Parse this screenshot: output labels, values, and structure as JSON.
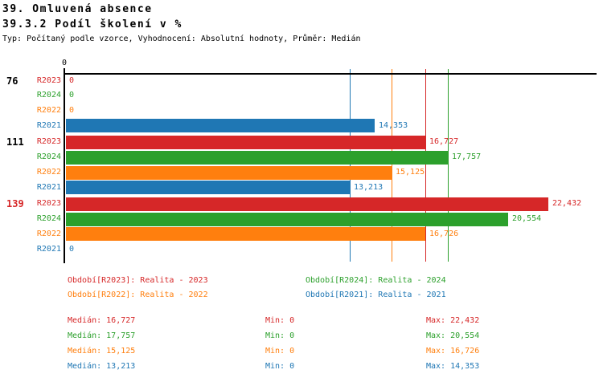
{
  "title": "39. Omluvená absence",
  "subtitle": "39.3.2 Podíl školení v %",
  "meta": "Typ: Počítaný podle vzorce, Vyhodnocení: Absolutní hodnoty, Průměr: Medián",
  "series_colors": {
    "R2023": "#d62728",
    "R2024": "#2ca02c",
    "R2022": "#ff7f0e",
    "R2021": "#1f77b4"
  },
  "axis_color": "#000000",
  "highlight_color": "#d62728",
  "chart_data": {
    "type": "bar",
    "orientation": "horizontal",
    "x_axis": {
      "zero_label": "0",
      "xlim": [
        0,
        24.7
      ],
      "grid": false
    },
    "series_order": [
      "R2023",
      "R2024",
      "R2022",
      "R2021"
    ],
    "groups": [
      {
        "label": "76",
        "highlight": false,
        "bars": [
          {
            "series": "R2023",
            "value": 0,
            "display": "0"
          },
          {
            "series": "R2024",
            "value": 0,
            "display": "0"
          },
          {
            "series": "R2022",
            "value": 0,
            "display": "0"
          },
          {
            "series": "R2021",
            "value": 14.353,
            "display": "14,353"
          }
        ]
      },
      {
        "label": "111",
        "highlight": false,
        "bars": [
          {
            "series": "R2023",
            "value": 16.727,
            "display": "16,727"
          },
          {
            "series": "R2024",
            "value": 17.757,
            "display": "17,757"
          },
          {
            "series": "R2022",
            "value": 15.125,
            "display": "15,125"
          },
          {
            "series": "R2021",
            "value": 13.213,
            "display": "13,213"
          }
        ]
      },
      {
        "label": "139",
        "highlight": true,
        "bars": [
          {
            "series": "R2023",
            "value": 22.432,
            "display": "22,432"
          },
          {
            "series": "R2024",
            "value": 20.554,
            "display": "20,554"
          },
          {
            "series": "R2022",
            "value": 16.726,
            "display": "16,726"
          },
          {
            "series": "R2021",
            "value": 0,
            "display": "0"
          }
        ]
      }
    ],
    "median_lines": [
      {
        "series": "R2023",
        "value": 16.727
      },
      {
        "series": "R2024",
        "value": 17.757
      },
      {
        "series": "R2022",
        "value": 15.125
      },
      {
        "series": "R2021",
        "value": 13.213
      }
    ]
  },
  "legend": {
    "items": [
      {
        "series": "R2023",
        "text": "Období[R2023]: Realita - 2023"
      },
      {
        "series": "R2024",
        "text": "Období[R2024]: Realita - 2024"
      },
      {
        "series": "R2022",
        "text": "Období[R2022]: Realita - 2022"
      },
      {
        "series": "R2021",
        "text": "Období[R2021]: Realita - 2021"
      }
    ]
  },
  "stats": {
    "rows": [
      {
        "series": "R2023",
        "median": "Medián: 16,727",
        "min": "Min: 0",
        "max": "Max: 22,432"
      },
      {
        "series": "R2024",
        "median": "Medián: 17,757",
        "min": "Min: 0",
        "max": "Max: 20,554"
      },
      {
        "series": "R2022",
        "median": "Medián: 15,125",
        "min": "Min: 0",
        "max": "Max: 16,726"
      },
      {
        "series": "R2021",
        "median": "Medián: 13,213",
        "min": "Min: 0",
        "max": "Max: 14,353"
      }
    ]
  }
}
